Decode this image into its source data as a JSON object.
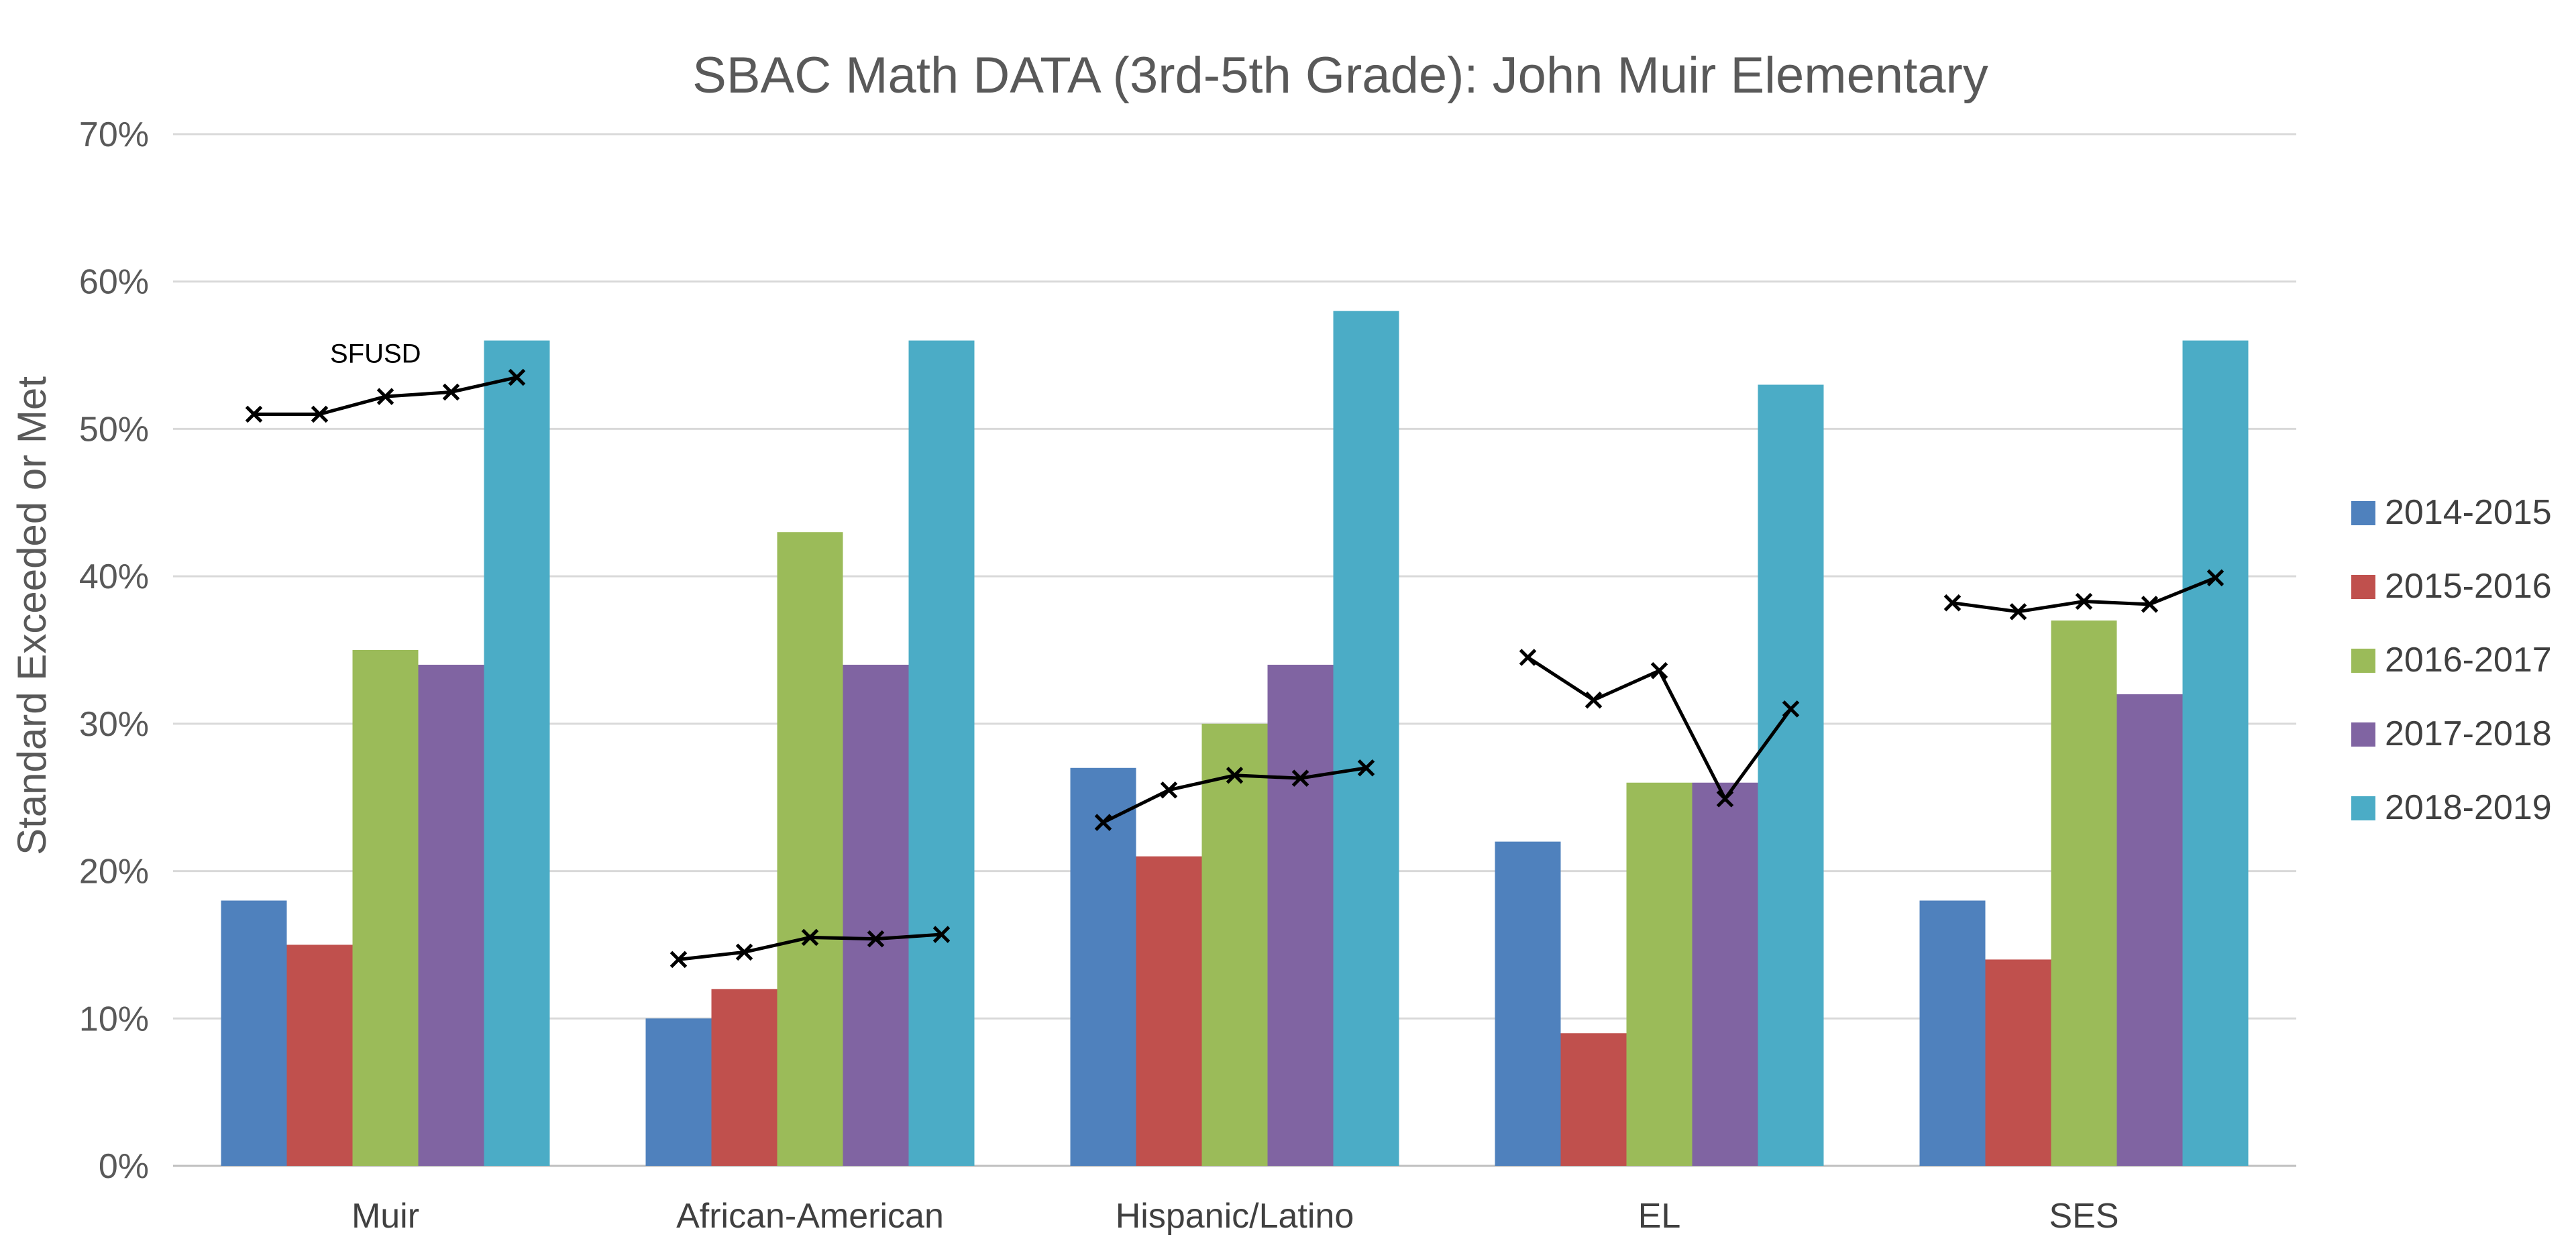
{
  "chart_data": {
    "type": "bar",
    "title": "SBAC Math DATA (3rd-5th Grade): John Muir Elementary",
    "xlabel": "",
    "ylabel": "Standard Exceeded or Met",
    "ylim": [
      0,
      70
    ],
    "y_ticks": [
      "0%",
      "10%",
      "20%",
      "30%",
      "40%",
      "50%",
      "60%",
      "70%"
    ],
    "grid": true,
    "legend_position": "right",
    "categories": [
      "Muir",
      "African-American",
      "Hispanic/Latino",
      "EL",
      "SES"
    ],
    "series": [
      {
        "name": "2014-2015",
        "color": "#4F81BD",
        "values": [
          18,
          10,
          27,
          22,
          18
        ]
      },
      {
        "name": "2015-2016",
        "color": "#C0504D",
        "values": [
          15,
          12,
          21,
          9,
          14
        ]
      },
      {
        "name": "2016-2017",
        "color": "#9BBB59",
        "values": [
          35,
          43,
          30,
          26,
          37
        ]
      },
      {
        "name": "2017-2018",
        "color": "#8064A2",
        "values": [
          34,
          34,
          34,
          26,
          32
        ]
      },
      {
        "name": "2018-2019",
        "color": "#4BACC6",
        "values": [
          56,
          56,
          58,
          53,
          56
        ]
      }
    ],
    "overlay_lines": [
      {
        "category": "Muir",
        "values": [
          51,
          51,
          52.2,
          52.5,
          53.5
        ]
      },
      {
        "category": "African-American",
        "values": [
          14,
          14.5,
          15.5,
          15.4,
          15.7
        ]
      },
      {
        "category": "Hispanic/Latino",
        "values": [
          23.3,
          25.5,
          26.5,
          26.3,
          27
        ]
      },
      {
        "category": "EL",
        "values": [
          34.5,
          31.6,
          33.6,
          24.9,
          31
        ]
      },
      {
        "category": "SES",
        "values": [
          38.2,
          37.6,
          38.3,
          38.1,
          39.9
        ]
      }
    ],
    "annotations": [
      {
        "text": "SFUSD",
        "category": "Muir"
      }
    ]
  }
}
